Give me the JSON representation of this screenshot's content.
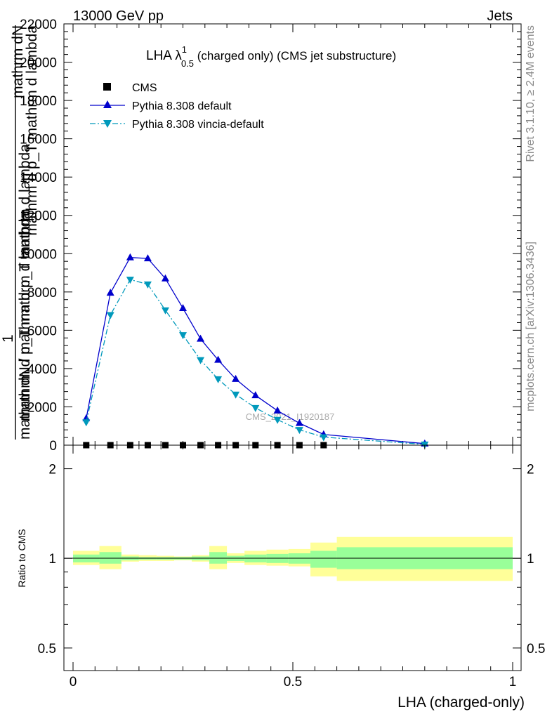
{
  "header": {
    "left": "13000 GeV pp",
    "right": "Jets"
  },
  "side_labels": {
    "rivet": "Rivet 3.1.10, ≥ 2.4M events",
    "mcplots": "mcplots.cern.ch [arXiv:1306.3436]"
  },
  "watermark": "CMS_2021_I1920187",
  "chart_data": [
    {
      "type": "line",
      "title": "LHA λ",
      "title_sup": "1",
      "title_sub": "0.5",
      "title_suffix": " (charged only) (CMS jet substructure)",
      "ylabel": {
        "numerator_top": "mathrm dN",
        "numerator_bottom": "mathrm d p_T mathrm d lambda",
        "one": "1",
        "denominator": "mathrm dN / mathrm d p_T mathrm d lambda"
      },
      "xlim": [
        0,
        1
      ],
      "ylim": [
        0,
        22000
      ],
      "yticks": [
        0,
        2000,
        4000,
        6000,
        8000,
        10000,
        12000,
        14000,
        16000,
        18000,
        20000,
        22000
      ],
      "ytick_labels": [
        "0",
        "2000",
        "4000",
        "6000",
        "8000",
        "10000",
        "12000",
        "14000",
        "16000",
        "18000",
        "20000",
        "22000"
      ],
      "legend_position": "top-left",
      "series": [
        {
          "name": "CMS",
          "marker": "square",
          "color": "#000000",
          "x": [
            0.03,
            0.085,
            0.13,
            0.17,
            0.21,
            0.25,
            0.29,
            0.33,
            0.37,
            0.415,
            0.465,
            0.515,
            0.57
          ],
          "y": [
            0,
            0,
            0,
            0,
            0,
            0,
            0,
            0,
            0,
            0,
            0,
            0,
            0
          ]
        },
        {
          "name": "Pythia 8.308 default",
          "marker": "triangle-up",
          "color": "#0000cc",
          "line": "solid",
          "x": [
            0.03,
            0.085,
            0.13,
            0.17,
            0.21,
            0.25,
            0.29,
            0.33,
            0.37,
            0.415,
            0.465,
            0.515,
            0.57,
            0.8
          ],
          "y": [
            1400,
            7950,
            9800,
            9750,
            8700,
            7150,
            5550,
            4450,
            3450,
            2600,
            1800,
            1150,
            560,
            80
          ]
        },
        {
          "name": "Pythia 8.308 vincia-default",
          "marker": "triangle-down",
          "color": "#0099bb",
          "line": "dashdot",
          "x": [
            0.03,
            0.085,
            0.13,
            0.17,
            0.21,
            0.25,
            0.29,
            0.33,
            0.37,
            0.415,
            0.465,
            0.515,
            0.57,
            0.8
          ],
          "y": [
            1200,
            6800,
            8650,
            8400,
            7050,
            5750,
            4450,
            3450,
            2650,
            1950,
            1330,
            800,
            420,
            40
          ]
        }
      ]
    },
    {
      "type": "area",
      "ylabel": "Ratio to CMS",
      "xlabel": "LHA (charged-only)",
      "xlim": [
        0,
        1
      ],
      "xticks": [
        0,
        0.5,
        1
      ],
      "xtick_labels": [
        "0",
        "0.5",
        "1"
      ],
      "yticks": [
        0.5,
        1,
        2
      ],
      "ytick_labels": [
        "0.5",
        "1",
        "2"
      ],
      "ylim": [
        0.42,
        2.4
      ],
      "scale": "log",
      "band_colors": {
        "inner": "#99ff99",
        "outer": "#ffff99"
      },
      "bins": [
        {
          "x0": 0.0,
          "x1": 0.06,
          "inner": [
            0.97,
            1.03
          ],
          "outer": [
            0.95,
            1.06
          ]
        },
        {
          "x0": 0.06,
          "x1": 0.11,
          "inner": [
            0.96,
            1.05
          ],
          "outer": [
            0.92,
            1.1
          ]
        },
        {
          "x0": 0.11,
          "x1": 0.15,
          "inner": [
            0.985,
            1.015
          ],
          "outer": [
            0.975,
            1.03
          ]
        },
        {
          "x0": 0.15,
          "x1": 0.19,
          "inner": [
            0.99,
            1.01
          ],
          "outer": [
            0.98,
            1.025
          ]
        },
        {
          "x0": 0.19,
          "x1": 0.23,
          "inner": [
            0.99,
            1.01
          ],
          "outer": [
            0.98,
            1.02
          ]
        },
        {
          "x0": 0.23,
          "x1": 0.27,
          "inner": [
            0.99,
            1.01
          ],
          "outer": [
            0.985,
            1.015
          ]
        },
        {
          "x0": 0.27,
          "x1": 0.31,
          "inner": [
            0.985,
            1.015
          ],
          "outer": [
            0.975,
            1.025
          ]
        },
        {
          "x0": 0.31,
          "x1": 0.35,
          "inner": [
            0.96,
            1.05
          ],
          "outer": [
            0.92,
            1.1
          ]
        },
        {
          "x0": 0.35,
          "x1": 0.39,
          "inner": [
            0.98,
            1.02
          ],
          "outer": [
            0.965,
            1.04
          ]
        },
        {
          "x0": 0.39,
          "x1": 0.44,
          "inner": [
            0.97,
            1.03
          ],
          "outer": [
            0.95,
            1.06
          ]
        },
        {
          "x0": 0.44,
          "x1": 0.49,
          "inner": [
            0.965,
            1.035
          ],
          "outer": [
            0.945,
            1.07
          ]
        },
        {
          "x0": 0.49,
          "x1": 0.54,
          "inner": [
            0.96,
            1.04
          ],
          "outer": [
            0.94,
            1.075
          ]
        },
        {
          "x0": 0.54,
          "x1": 0.6,
          "inner": [
            0.93,
            1.06
          ],
          "outer": [
            0.87,
            1.13
          ]
        },
        {
          "x0": 0.6,
          "x1": 1.0,
          "inner": [
            0.92,
            1.09
          ],
          "outer": [
            0.84,
            1.18
          ]
        }
      ]
    }
  ]
}
